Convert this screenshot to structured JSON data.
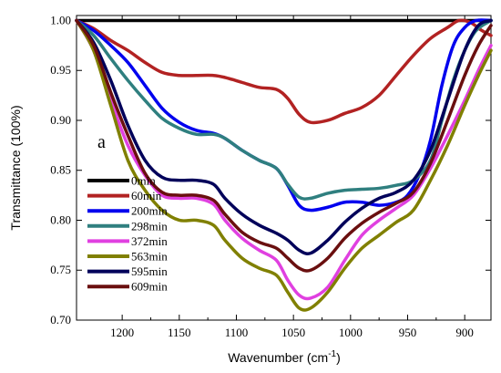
{
  "chart_data": {
    "type": "line",
    "title": "",
    "panel_label": "a",
    "xlabel": "Wavenumber (cm",
    "xlabel_sup": "-1",
    "xlabel_suffix": ")",
    "ylabel": "Transmittance (100%)",
    "xlim": [
      1240,
      877
    ],
    "ylim": [
      0.7,
      1.005
    ],
    "x_reversed": true,
    "grid": false,
    "legend_position": "bottom-left",
    "x_ticks": [
      {
        "value": 1200,
        "label": "1200"
      },
      {
        "value": 1150,
        "label": "1150"
      },
      {
        "value": 1100,
        "label": "1100"
      },
      {
        "value": 1050,
        "label": "1050"
      },
      {
        "value": 1000,
        "label": "1000"
      },
      {
        "value": 950,
        "label": "950"
      },
      {
        "value": 900,
        "label": "900"
      }
    ],
    "y_ticks": [
      {
        "value": 0.7,
        "label": "0.70"
      },
      {
        "value": 0.75,
        "label": "0.75"
      },
      {
        "value": 0.8,
        "label": "0.80"
      },
      {
        "value": 0.85,
        "label": "0.85"
      },
      {
        "value": 0.9,
        "label": "0.90"
      },
      {
        "value": 0.95,
        "label": "0.95"
      },
      {
        "value": 1.0,
        "label": "1.00"
      }
    ],
    "series": [
      {
        "name": "0min",
        "color": "#000000",
        "points": [
          [
            1240,
            1.0
          ],
          [
            1200,
            1.0
          ],
          [
            1100,
            1.0
          ],
          [
            1000,
            1.0
          ],
          [
            900,
            1.0
          ],
          [
            877,
            1.0
          ]
        ]
      },
      {
        "name": "60min",
        "color": "#b22222",
        "points": [
          [
            1240,
            1.0
          ],
          [
            1225,
            0.992
          ],
          [
            1210,
            0.98
          ],
          [
            1195,
            0.97
          ],
          [
            1180,
            0.958
          ],
          [
            1165,
            0.948
          ],
          [
            1150,
            0.945
          ],
          [
            1135,
            0.945
          ],
          [
            1120,
            0.945
          ],
          [
            1110,
            0.943
          ],
          [
            1095,
            0.938
          ],
          [
            1080,
            0.933
          ],
          [
            1065,
            0.931
          ],
          [
            1055,
            0.922
          ],
          [
            1045,
            0.906
          ],
          [
            1035,
            0.898
          ],
          [
            1020,
            0.9
          ],
          [
            1005,
            0.907
          ],
          [
            990,
            0.913
          ],
          [
            975,
            0.925
          ],
          [
            960,
            0.945
          ],
          [
            945,
            0.965
          ],
          [
            930,
            0.982
          ],
          [
            915,
            0.993
          ],
          [
            905,
            1.0
          ],
          [
            895,
            0.998
          ],
          [
            885,
            0.99
          ],
          [
            877,
            0.985
          ]
        ]
      },
      {
        "name": "200min",
        "color": "#0000ee",
        "points": [
          [
            1240,
            1.0
          ],
          [
            1225,
            0.99
          ],
          [
            1210,
            0.975
          ],
          [
            1195,
            0.958
          ],
          [
            1180,
            0.935
          ],
          [
            1165,
            0.912
          ],
          [
            1150,
            0.898
          ],
          [
            1135,
            0.89
          ],
          [
            1120,
            0.887
          ],
          [
            1110,
            0.882
          ],
          [
            1095,
            0.87
          ],
          [
            1080,
            0.86
          ],
          [
            1065,
            0.852
          ],
          [
            1055,
            0.835
          ],
          [
            1045,
            0.815
          ],
          [
            1035,
            0.81
          ],
          [
            1020,
            0.813
          ],
          [
            1005,
            0.818
          ],
          [
            990,
            0.818
          ],
          [
            975,
            0.815
          ],
          [
            960,
            0.818
          ],
          [
            950,
            0.825
          ],
          [
            940,
            0.845
          ],
          [
            930,
            0.88
          ],
          [
            920,
            0.935
          ],
          [
            910,
            0.975
          ],
          [
            900,
            0.993
          ],
          [
            890,
            1.0
          ],
          [
            877,
            1.0
          ]
        ]
      },
      {
        "name": "298min",
        "color": "#2f7f7f",
        "points": [
          [
            1240,
            1.0
          ],
          [
            1225,
            0.985
          ],
          [
            1210,
            0.962
          ],
          [
            1195,
            0.94
          ],
          [
            1180,
            0.92
          ],
          [
            1165,
            0.902
          ],
          [
            1150,
            0.892
          ],
          [
            1135,
            0.886
          ],
          [
            1120,
            0.886
          ],
          [
            1110,
            0.882
          ],
          [
            1095,
            0.87
          ],
          [
            1080,
            0.86
          ],
          [
            1065,
            0.852
          ],
          [
            1055,
            0.836
          ],
          [
            1045,
            0.823
          ],
          [
            1035,
            0.822
          ],
          [
            1020,
            0.827
          ],
          [
            1005,
            0.83
          ],
          [
            990,
            0.831
          ],
          [
            975,
            0.832
          ],
          [
            960,
            0.835
          ],
          [
            945,
            0.84
          ],
          [
            930,
            0.86
          ],
          [
            920,
            0.9
          ],
          [
            910,
            0.94
          ],
          [
            900,
            0.97
          ],
          [
            890,
            0.99
          ],
          [
            877,
            1.0
          ]
        ]
      },
      {
        "name": "372min",
        "color": "#e040e0",
        "points": [
          [
            1240,
            1.0
          ],
          [
            1225,
            0.97
          ],
          [
            1210,
            0.92
          ],
          [
            1195,
            0.875
          ],
          [
            1180,
            0.845
          ],
          [
            1165,
            0.825
          ],
          [
            1150,
            0.822
          ],
          [
            1135,
            0.822
          ],
          [
            1120,
            0.816
          ],
          [
            1110,
            0.8
          ],
          [
            1095,
            0.782
          ],
          [
            1080,
            0.77
          ],
          [
            1065,
            0.76
          ],
          [
            1055,
            0.74
          ],
          [
            1045,
            0.725
          ],
          [
            1035,
            0.722
          ],
          [
            1020,
            0.733
          ],
          [
            1005,
            0.76
          ],
          [
            990,
            0.785
          ],
          [
            975,
            0.8
          ],
          [
            960,
            0.812
          ],
          [
            945,
            0.825
          ],
          [
            930,
            0.852
          ],
          [
            915,
            0.885
          ],
          [
            900,
            0.92
          ],
          [
            888,
            0.95
          ],
          [
            877,
            0.975
          ]
        ]
      },
      {
        "name": "563min",
        "color": "#808000",
        "points": [
          [
            1240,
            1.0
          ],
          [
            1225,
            0.97
          ],
          [
            1210,
            0.915
          ],
          [
            1195,
            0.86
          ],
          [
            1180,
            0.83
          ],
          [
            1165,
            0.81
          ],
          [
            1150,
            0.8
          ],
          [
            1135,
            0.8
          ],
          [
            1120,
            0.795
          ],
          [
            1110,
            0.78
          ],
          [
            1095,
            0.762
          ],
          [
            1080,
            0.752
          ],
          [
            1065,
            0.745
          ],
          [
            1055,
            0.728
          ],
          [
            1045,
            0.712
          ],
          [
            1035,
            0.712
          ],
          [
            1020,
            0.728
          ],
          [
            1005,
            0.752
          ],
          [
            990,
            0.772
          ],
          [
            975,
            0.785
          ],
          [
            960,
            0.798
          ],
          [
            945,
            0.81
          ],
          [
            930,
            0.84
          ],
          [
            915,
            0.875
          ],
          [
            900,
            0.915
          ],
          [
            888,
            0.945
          ],
          [
            877,
            0.97
          ]
        ]
      },
      {
        "name": "595min",
        "color": "#00005a",
        "points": [
          [
            1240,
            1.0
          ],
          [
            1225,
            0.978
          ],
          [
            1210,
            0.94
          ],
          [
            1195,
            0.895
          ],
          [
            1180,
            0.86
          ],
          [
            1165,
            0.843
          ],
          [
            1150,
            0.84
          ],
          [
            1135,
            0.84
          ],
          [
            1120,
            0.836
          ],
          [
            1110,
            0.822
          ],
          [
            1095,
            0.806
          ],
          [
            1080,
            0.795
          ],
          [
            1065,
            0.787
          ],
          [
            1055,
            0.78
          ],
          [
            1045,
            0.77
          ],
          [
            1035,
            0.767
          ],
          [
            1020,
            0.78
          ],
          [
            1005,
            0.798
          ],
          [
            990,
            0.812
          ],
          [
            975,
            0.822
          ],
          [
            960,
            0.828
          ],
          [
            945,
            0.84
          ],
          [
            930,
            0.87
          ],
          [
            915,
            0.92
          ],
          [
            900,
            0.97
          ],
          [
            888,
            0.995
          ],
          [
            877,
            1.0
          ]
        ]
      },
      {
        "name": "609min",
        "color": "#6a0f0f",
        "points": [
          [
            1240,
            1.0
          ],
          [
            1225,
            0.975
          ],
          [
            1210,
            0.928
          ],
          [
            1195,
            0.885
          ],
          [
            1180,
            0.847
          ],
          [
            1165,
            0.828
          ],
          [
            1150,
            0.825
          ],
          [
            1135,
            0.825
          ],
          [
            1120,
            0.82
          ],
          [
            1110,
            0.806
          ],
          [
            1095,
            0.788
          ],
          [
            1080,
            0.778
          ],
          [
            1065,
            0.772
          ],
          [
            1055,
            0.762
          ],
          [
            1045,
            0.752
          ],
          [
            1035,
            0.75
          ],
          [
            1020,
            0.762
          ],
          [
            1005,
            0.782
          ],
          [
            990,
            0.797
          ],
          [
            975,
            0.808
          ],
          [
            960,
            0.817
          ],
          [
            945,
            0.828
          ],
          [
            930,
            0.857
          ],
          [
            915,
            0.9
          ],
          [
            900,
            0.945
          ],
          [
            888,
            0.975
          ],
          [
            877,
            0.995
          ]
        ]
      }
    ]
  }
}
